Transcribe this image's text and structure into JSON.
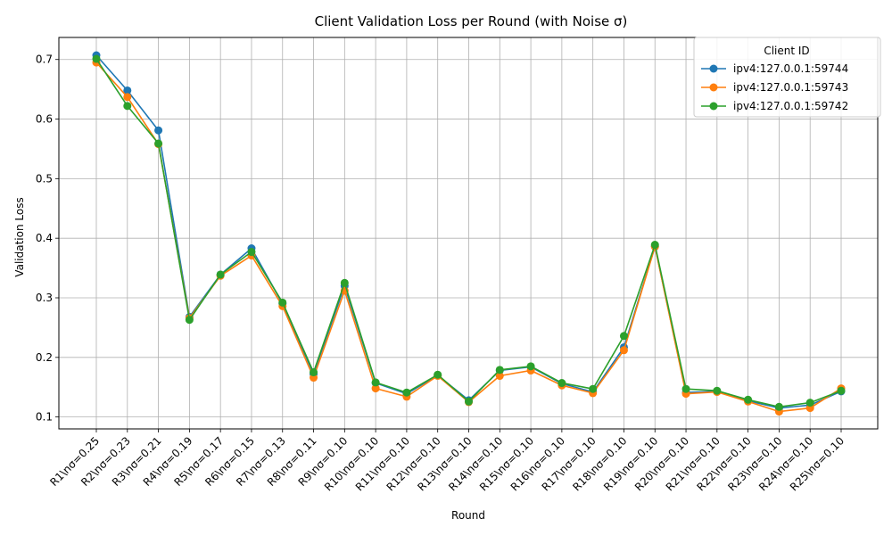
{
  "chart_data": {
    "type": "line",
    "title": "Client Validation Loss per Round (with Noise σ)",
    "xlabel": "Round",
    "ylabel": "Validation Loss",
    "categories": [
      "R1\\nσ=0.25",
      "R2\\nσ=0.23",
      "R3\\nσ=0.21",
      "R4\\nσ=0.19",
      "R5\\nσ=0.17",
      "R6\\nσ=0.15",
      "R7\\nσ=0.13",
      "R8\\nσ=0.11",
      "R9\\nσ=0.10",
      "R10\\nσ=0.10",
      "R11\\nσ=0.10",
      "R12\\nσ=0.10",
      "R13\\nσ=0.10",
      "R14\\nσ=0.10",
      "R15\\nσ=0.10",
      "R16\\nσ=0.10",
      "R17\\nσ=0.10",
      "R18\\nσ=0.10",
      "R19\\nσ=0.10",
      "R20\\nσ=0.10",
      "R21\\nσ=0.10",
      "R22\\nσ=0.10",
      "R23\\nσ=0.10",
      "R24\\nσ=0.10",
      "R25\\nσ=0.10"
    ],
    "ylim": [
      0.08,
      0.737
    ],
    "yticks": [
      0.1,
      0.2,
      0.3,
      0.4,
      0.5,
      0.6,
      0.7
    ],
    "grid": true,
    "legend": {
      "title": "Client ID",
      "placement": "top-right"
    },
    "series": [
      {
        "name": "ipv4:127.0.0.1:59744",
        "color": "#1f77b4",
        "values": [
          0.707,
          0.648,
          0.581,
          0.268,
          0.339,
          0.383,
          0.29,
          0.172,
          0.32,
          0.157,
          0.139,
          0.17,
          0.128,
          0.178,
          0.184,
          0.156,
          0.142,
          0.217,
          0.386,
          0.141,
          0.143,
          0.127,
          0.115,
          0.12,
          0.143
        ]
      },
      {
        "name": "ipv4:127.0.0.1:59743",
        "color": "#ff7f0e",
        "values": [
          0.695,
          0.637,
          0.558,
          0.266,
          0.337,
          0.371,
          0.286,
          0.166,
          0.312,
          0.148,
          0.134,
          0.169,
          0.125,
          0.169,
          0.178,
          0.153,
          0.14,
          0.212,
          0.386,
          0.139,
          0.142,
          0.126,
          0.109,
          0.115,
          0.148
        ]
      },
      {
        "name": "ipv4:127.0.0.1:59742",
        "color": "#2ca02c",
        "values": [
          0.701,
          0.622,
          0.559,
          0.263,
          0.339,
          0.377,
          0.292,
          0.175,
          0.325,
          0.158,
          0.141,
          0.171,
          0.126,
          0.179,
          0.185,
          0.157,
          0.147,
          0.236,
          0.389,
          0.147,
          0.144,
          0.129,
          0.117,
          0.124,
          0.144
        ]
      }
    ]
  }
}
